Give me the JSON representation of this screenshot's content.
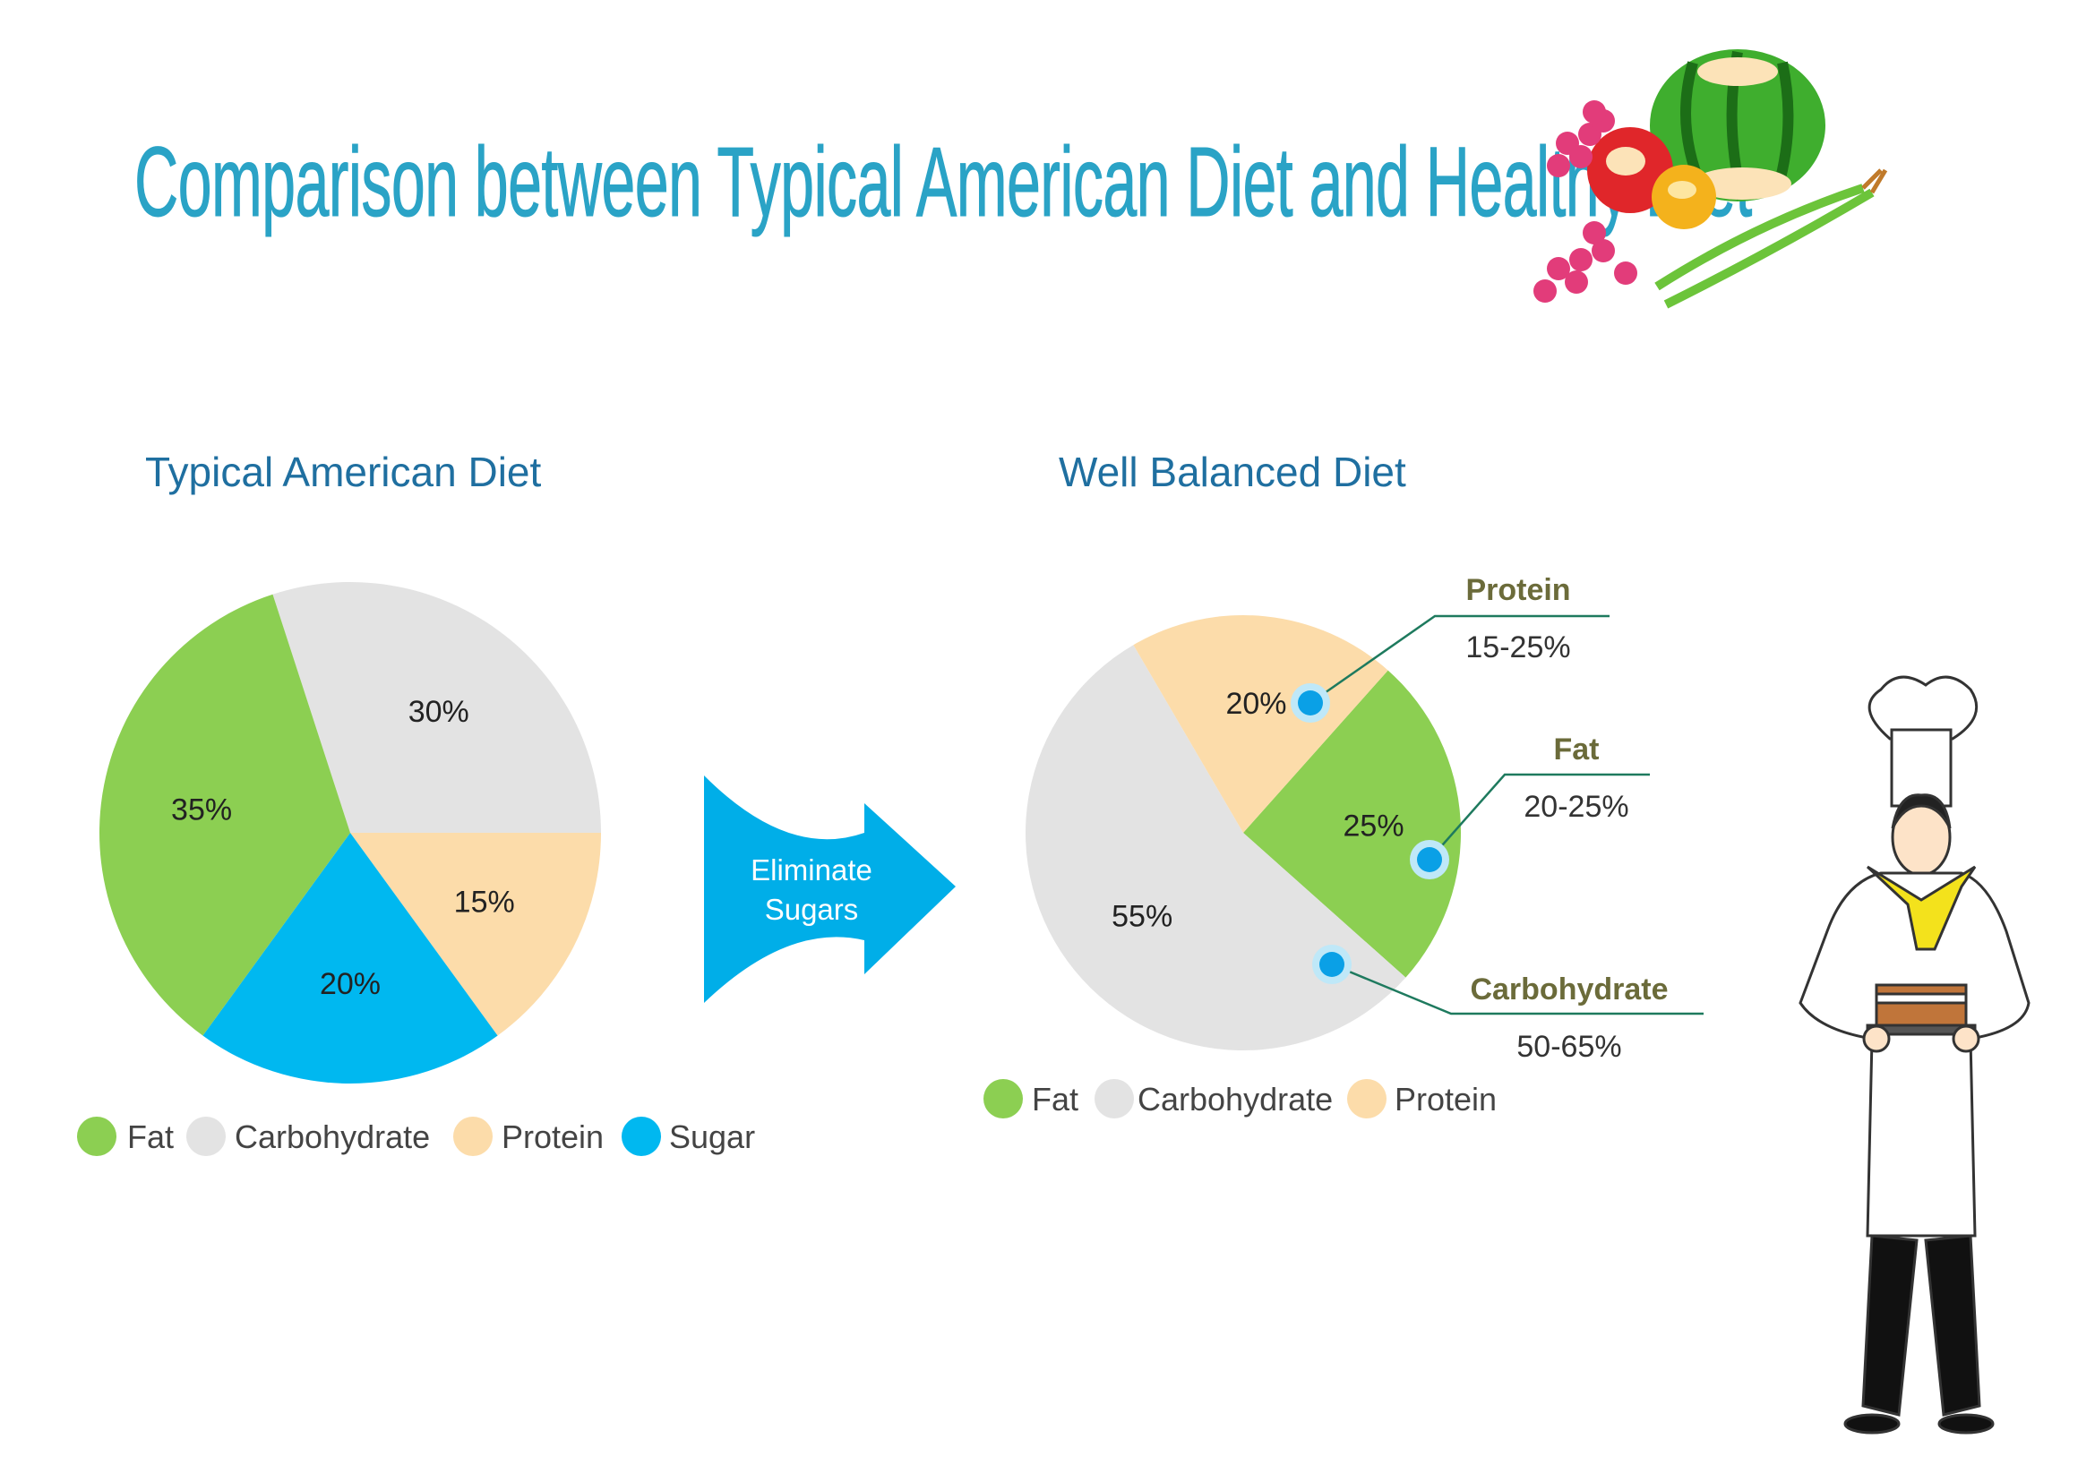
{
  "title": "Comparison between Typical American Diet and Healthy Diet",
  "arrow_label": [
    "Eliminate",
    "Sugars"
  ],
  "colors": {
    "fat": "#8ccf52",
    "carbohydrate": "#e3e3e3",
    "protein": "#fcdcaa",
    "sugar": "#00b8f0",
    "arrow": "#00aee8",
    "title": "#2aa3c6",
    "subtitle": "#1f6fa0",
    "callout_label": "#6b6b3a",
    "callout_line": "#1e7a5e"
  },
  "chart_data": [
    {
      "type": "pie",
      "title": "Typical American Diet",
      "slices": [
        {
          "label": "Carbohydrate",
          "value": 30,
          "display": "30%",
          "color": "#e3e3e3"
        },
        {
          "label": "Protein",
          "value": 15,
          "display": "15%",
          "color": "#fcdcaa"
        },
        {
          "label": "Sugar",
          "value": 20,
          "display": "20%",
          "color": "#00b8f0"
        },
        {
          "label": "Fat",
          "value": 35,
          "display": "35%",
          "color": "#8ccf52"
        }
      ],
      "legend": [
        "Fat",
        "Carbohydrate",
        "Protein",
        "Sugar"
      ],
      "legend_placement": "bottom"
    },
    {
      "type": "pie",
      "title": "Well Balanced Diet",
      "slices": [
        {
          "label": "Fat",
          "value": 25,
          "display": "25%",
          "color": "#8ccf52"
        },
        {
          "label": "Carbohydrate",
          "value": 55,
          "display": "55%",
          "color": "#e3e3e3"
        },
        {
          "label": "Protein",
          "value": 20,
          "display": "20%",
          "color": "#fcdcaa"
        }
      ],
      "legend": [
        "Fat",
        "Carbohydrate",
        "Protein"
      ],
      "legend_placement": "bottom",
      "annotations": [
        {
          "label": "Protein",
          "range": "15-25%"
        },
        {
          "label": "Fat",
          "range": "20-25%"
        },
        {
          "label": "Carbohydrate",
          "range": "50-65%"
        }
      ]
    }
  ]
}
